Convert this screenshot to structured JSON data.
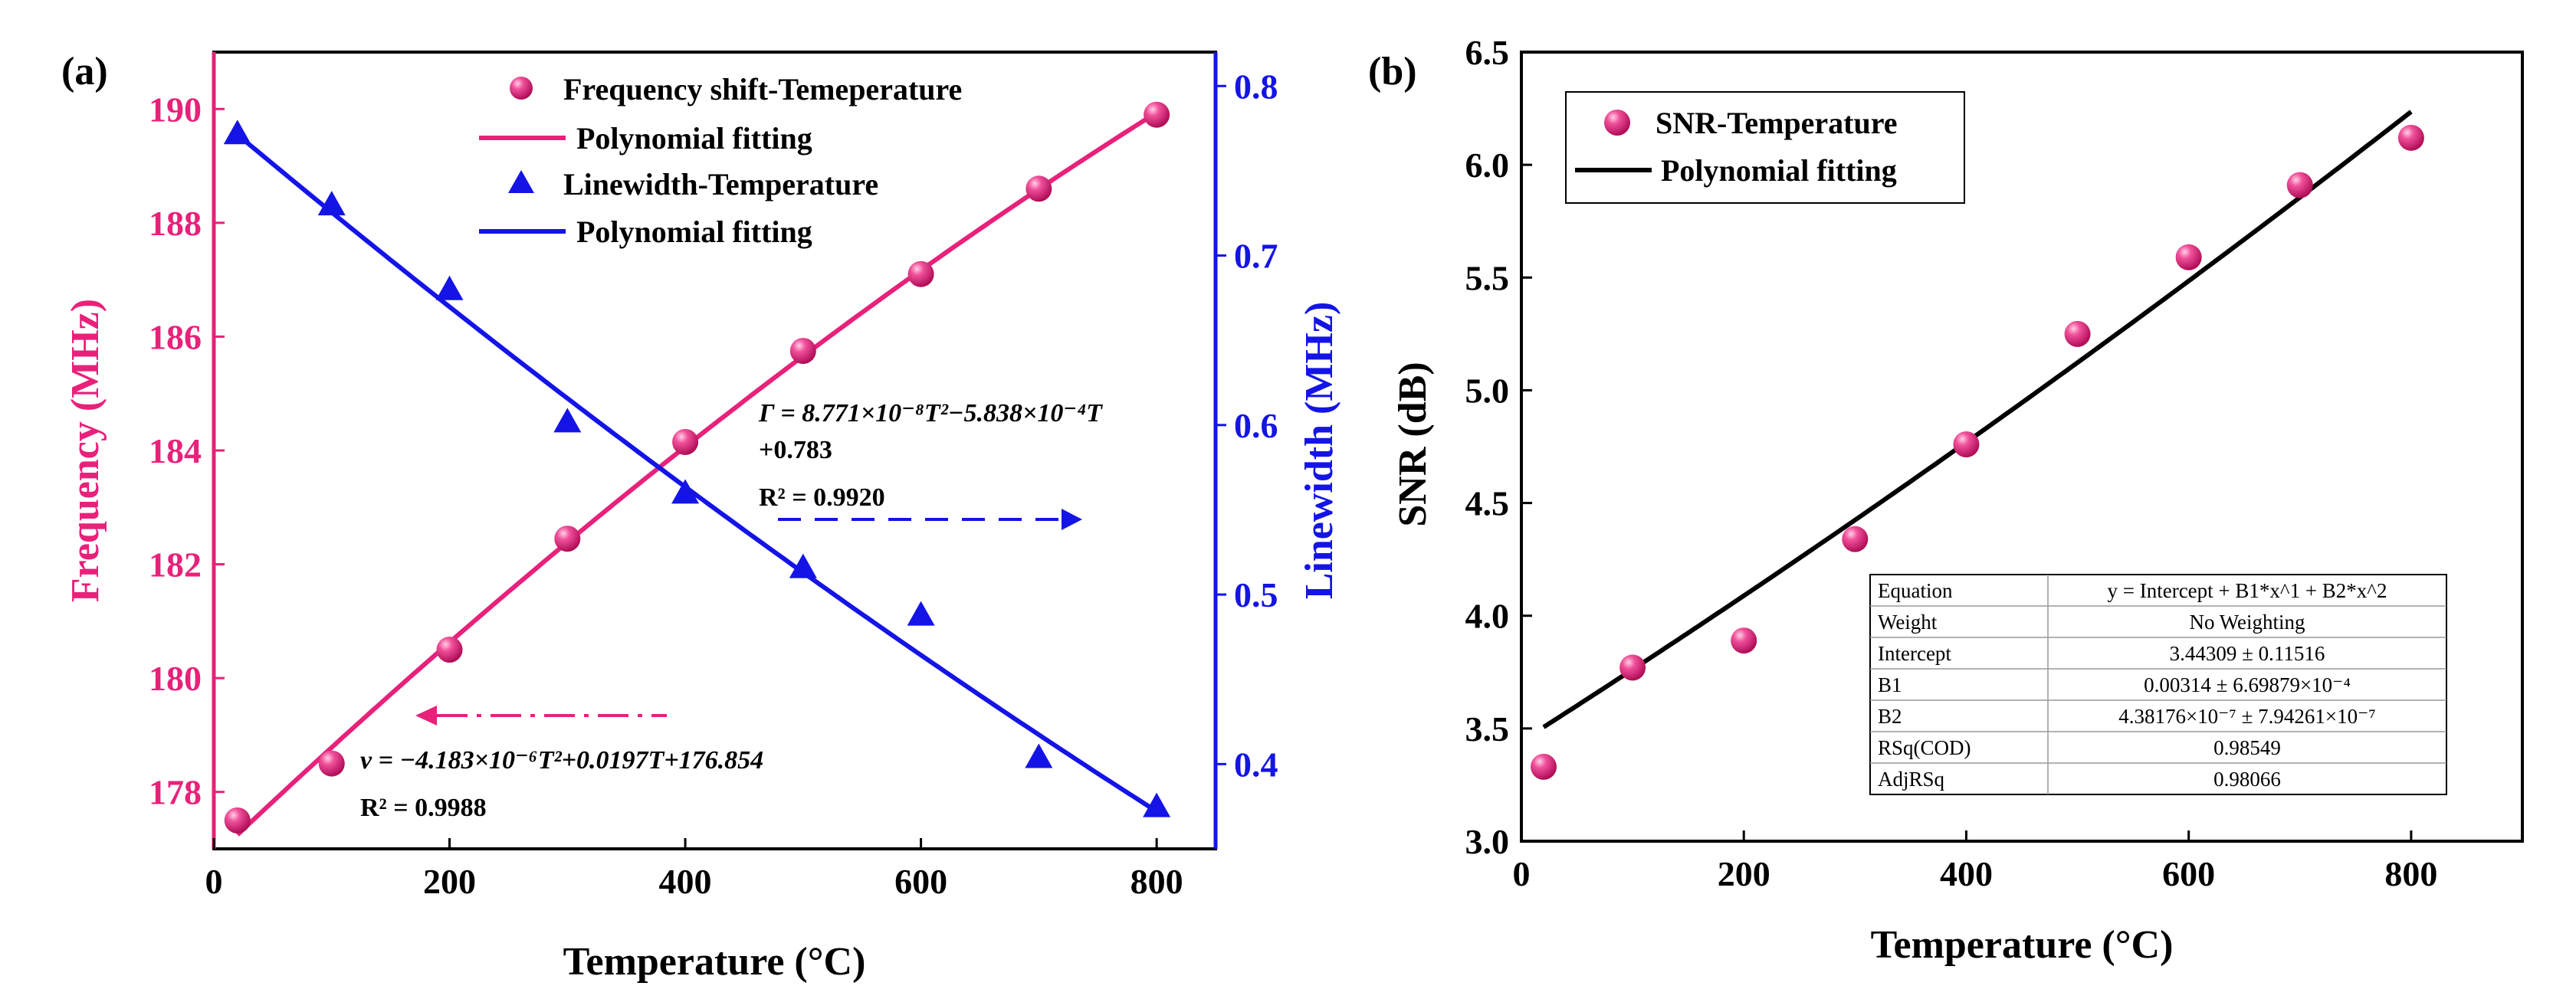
{
  "chart_data": [
    {
      "panel": "(a)",
      "type": "scatter+line",
      "xlabel": "Temperature (°C)",
      "ylabel": "Frequency (MHz)",
      "y2label": "Linewidth (MHz)",
      "xlim": [
        0,
        850
      ],
      "ylim": [
        177,
        191
      ],
      "y2lim": [
        0.35,
        0.82
      ],
      "xticks": [
        0,
        200,
        400,
        600,
        800
      ],
      "yticks": [
        178,
        180,
        182,
        184,
        186,
        188,
        190
      ],
      "y2ticks": [
        0.4,
        0.5,
        0.6,
        0.7,
        0.8
      ],
      "series": [
        {
          "name": "Frequency shift-Temeperature",
          "marker": "sphere",
          "axis": "left",
          "x": [
            20,
            100,
            200,
            300,
            400,
            500,
            600,
            700,
            800
          ],
          "y": [
            177.5,
            178.5,
            180.5,
            182.45,
            184.15,
            185.75,
            187.1,
            188.6,
            189.9
          ]
        },
        {
          "name": "Polynomial fitting",
          "marker": "line",
          "axis": "left",
          "fit": {
            "a": -4.183e-06,
            "b": 0.0197,
            "c": 176.854
          },
          "x_range": [
            20,
            800
          ]
        },
        {
          "name": "Linewidth-Temperature",
          "marker": "triangle",
          "axis": "right",
          "x": [
            20,
            100,
            200,
            300,
            400,
            500,
            600,
            700,
            800
          ],
          "y": [
            0.772,
            0.73,
            0.68,
            0.602,
            0.56,
            0.516,
            0.488,
            0.404,
            0.375
          ]
        },
        {
          "name": "Polynomial fitting",
          "marker": "line",
          "axis": "right",
          "fit": {
            "a": 8.771e-08,
            "b": -0.0005838,
            "c": 0.783
          },
          "x_range": [
            20,
            800
          ]
        }
      ],
      "annotations": {
        "gamma_eq_1": "Γ = 8.771×10⁻⁸T²−5.838×10⁻⁴T",
        "gamma_eq_2": "+0.783",
        "gamma_r2": "R² = 0.9920",
        "nu_eq": "ν = −4.183×10⁻⁶T²+0.0197T+176.854",
        "nu_r2": "R² = 0.9988"
      }
    },
    {
      "panel": "(b)",
      "type": "scatter+line",
      "xlabel": "Temperature (°C)",
      "ylabel": "SNR (dB)",
      "xlim": [
        0,
        900
      ],
      "ylim": [
        3.0,
        6.5
      ],
      "xticks": [
        0,
        200,
        400,
        600,
        800
      ],
      "yticks": [
        3.0,
        3.5,
        4.0,
        4.5,
        5.0,
        5.5,
        6.0,
        6.5
      ],
      "series": [
        {
          "name": "SNR-Temperature",
          "marker": "sphere",
          "x": [
            20,
            100,
            200,
            300,
            400,
            500,
            600,
            700,
            800
          ],
          "y": [
            3.33,
            3.77,
            3.89,
            4.34,
            4.76,
            5.25,
            5.59,
            5.91,
            6.12
          ]
        },
        {
          "name": "Polynomial fitting",
          "marker": "line",
          "fit": {
            "a": 4.38176e-07,
            "b": 0.00314,
            "c": 3.44309
          },
          "x_range": [
            20,
            800
          ]
        }
      ],
      "fit_table": [
        [
          "Equation",
          "y = Intercept + B1*x^1 + B2*x^2"
        ],
        [
          "Weight",
          "No Weighting"
        ],
        [
          "Intercept",
          "3.44309 ± 0.11516"
        ],
        [
          "B1",
          "0.00314 ± 6.69879×10⁻⁴"
        ],
        [
          "B2",
          "4.38176×10⁻⁷ ± 7.94261×10⁻⁷"
        ],
        [
          "RSq(COD)",
          "0.98549"
        ],
        [
          "AdjRSq",
          "0.98066"
        ]
      ]
    }
  ],
  "colors": {
    "pink": "#E8217A",
    "blue": "#1414E6",
    "black": "#000000"
  }
}
